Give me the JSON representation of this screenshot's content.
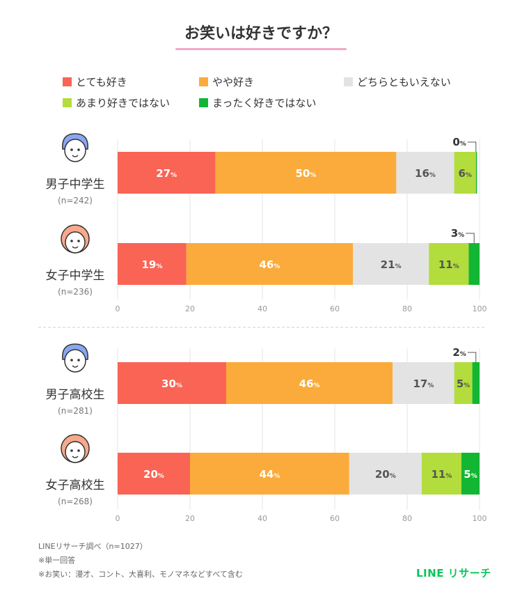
{
  "title": "お笑いは好きですか？",
  "legend": [
    {
      "label": "とても好き",
      "color": "#f96455"
    },
    {
      "label": "やや好き",
      "color": "#fbab3b"
    },
    {
      "label": "どちらともいえない",
      "color": "#e3e3e3"
    },
    {
      "label": "あまり好きではない",
      "color": "#b2dd3c"
    },
    {
      "label": "まったく好きではない",
      "color": "#13b633"
    }
  ],
  "chart_data": [
    {
      "type": "bar",
      "orientation": "horizontal",
      "stacked": true,
      "categories": [
        "男子中学生",
        "女子中学生"
      ],
      "sample_sizes": [
        "(n=242)",
        "(n=236)"
      ],
      "series": [
        {
          "name": "とても好き",
          "values": [
            27,
            19
          ]
        },
        {
          "name": "やや好き",
          "values": [
            50,
            46
          ]
        },
        {
          "name": "どちらともいえない",
          "values": [
            16,
            21
          ]
        },
        {
          "name": "あまり好きではない",
          "values": [
            6,
            11
          ]
        },
        {
          "name": "まったく好きではない",
          "values": [
            0,
            3
          ]
        }
      ],
      "xlim": [
        0,
        100
      ],
      "xticks": [
        0,
        20,
        40,
        60,
        80,
        100
      ],
      "unit": "%"
    },
    {
      "type": "bar",
      "orientation": "horizontal",
      "stacked": true,
      "categories": [
        "男子高校生",
        "女子高校生"
      ],
      "sample_sizes": [
        "(n=281)",
        "(n=268)"
      ],
      "series": [
        {
          "name": "とても好き",
          "values": [
            30,
            20
          ]
        },
        {
          "name": "やや好き",
          "values": [
            46,
            44
          ]
        },
        {
          "name": "どちらともいえない",
          "values": [
            17,
            20
          ]
        },
        {
          "name": "あまり好きではない",
          "values": [
            5,
            11
          ]
        },
        {
          "name": "まったく好きではない",
          "values": [
            2,
            5
          ]
        }
      ],
      "xlim": [
        0,
        100
      ],
      "xticks": [
        0,
        20,
        40,
        60,
        80,
        100
      ],
      "unit": "%"
    }
  ],
  "footnotes": {
    "source": "LINEリサーチ調べ（n=1027）",
    "note1": "※単一回答",
    "note2": "※お笑い：漫才、コント、大喜利、モノマネなどすべて含む"
  },
  "brand": "LINE リサーチ"
}
